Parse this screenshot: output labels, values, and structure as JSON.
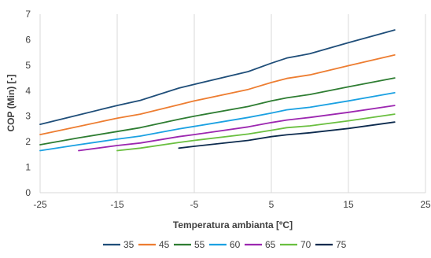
{
  "chart_data": {
    "type": "line",
    "title": "",
    "xlabel": "Temperatura ambianta [ºC]",
    "ylabel": "COP (Min) [-]",
    "xlim": [
      -25,
      25
    ],
    "ylim": [
      0,
      7
    ],
    "x_ticks": [
      -25,
      -15,
      -5,
      5,
      15,
      25
    ],
    "y_ticks": [
      0,
      1,
      2,
      3,
      4,
      5,
      6,
      7
    ],
    "grid": "vertical",
    "legend": "bottom",
    "series": [
      {
        "name": "35",
        "color": "#1f4e79",
        "points": [
          [
            -25,
            2.68
          ],
          [
            -20,
            3.05
          ],
          [
            -15,
            3.42
          ],
          [
            -12,
            3.62
          ],
          [
            -7,
            4.1
          ],
          [
            -5,
            4.25
          ],
          [
            2,
            4.75
          ],
          [
            5,
            5.08
          ],
          [
            7,
            5.28
          ],
          [
            10,
            5.45
          ],
          [
            15,
            5.88
          ],
          [
            21,
            6.38
          ]
        ]
      },
      {
        "name": "45",
        "color": "#ed7d31",
        "points": [
          [
            -25,
            2.28
          ],
          [
            -20,
            2.6
          ],
          [
            -15,
            2.92
          ],
          [
            -12,
            3.08
          ],
          [
            -7,
            3.45
          ],
          [
            -5,
            3.6
          ],
          [
            2,
            4.05
          ],
          [
            5,
            4.32
          ],
          [
            7,
            4.48
          ],
          [
            10,
            4.62
          ],
          [
            15,
            4.98
          ],
          [
            21,
            5.4
          ]
        ]
      },
      {
        "name": "55",
        "color": "#2e7d32",
        "points": [
          [
            -25,
            1.88
          ],
          [
            -20,
            2.15
          ],
          [
            -15,
            2.4
          ],
          [
            -12,
            2.55
          ],
          [
            -7,
            2.88
          ],
          [
            -5,
            3.0
          ],
          [
            2,
            3.38
          ],
          [
            5,
            3.6
          ],
          [
            7,
            3.72
          ],
          [
            10,
            3.85
          ],
          [
            15,
            4.15
          ],
          [
            21,
            4.5
          ]
        ]
      },
      {
        "name": "60",
        "color": "#1ba1e2",
        "points": [
          [
            -25,
            1.65
          ],
          [
            -20,
            1.88
          ],
          [
            -15,
            2.1
          ],
          [
            -12,
            2.22
          ],
          [
            -7,
            2.5
          ],
          [
            -5,
            2.6
          ],
          [
            2,
            2.95
          ],
          [
            5,
            3.12
          ],
          [
            7,
            3.25
          ],
          [
            10,
            3.35
          ],
          [
            15,
            3.6
          ],
          [
            21,
            3.92
          ]
        ]
      },
      {
        "name": "65",
        "color": "#9c27b0",
        "points": [
          [
            -20,
            1.65
          ],
          [
            -15,
            1.85
          ],
          [
            -12,
            1.95
          ],
          [
            -7,
            2.2
          ],
          [
            -5,
            2.28
          ],
          [
            2,
            2.58
          ],
          [
            5,
            2.75
          ],
          [
            7,
            2.85
          ],
          [
            10,
            2.95
          ],
          [
            15,
            3.15
          ],
          [
            21,
            3.42
          ]
        ]
      },
      {
        "name": "70",
        "color": "#6abf40",
        "points": [
          [
            -15,
            1.65
          ],
          [
            -12,
            1.75
          ],
          [
            -7,
            1.97
          ],
          [
            -5,
            2.05
          ],
          [
            2,
            2.3
          ],
          [
            5,
            2.45
          ],
          [
            7,
            2.55
          ],
          [
            10,
            2.62
          ],
          [
            15,
            2.82
          ],
          [
            21,
            3.08
          ]
        ]
      },
      {
        "name": "75",
        "color": "#0d2b4e",
        "points": [
          [
            -7,
            1.75
          ],
          [
            -5,
            1.82
          ],
          [
            2,
            2.05
          ],
          [
            5,
            2.2
          ],
          [
            7,
            2.27
          ],
          [
            10,
            2.35
          ],
          [
            15,
            2.52
          ],
          [
            21,
            2.77
          ]
        ]
      }
    ]
  }
}
